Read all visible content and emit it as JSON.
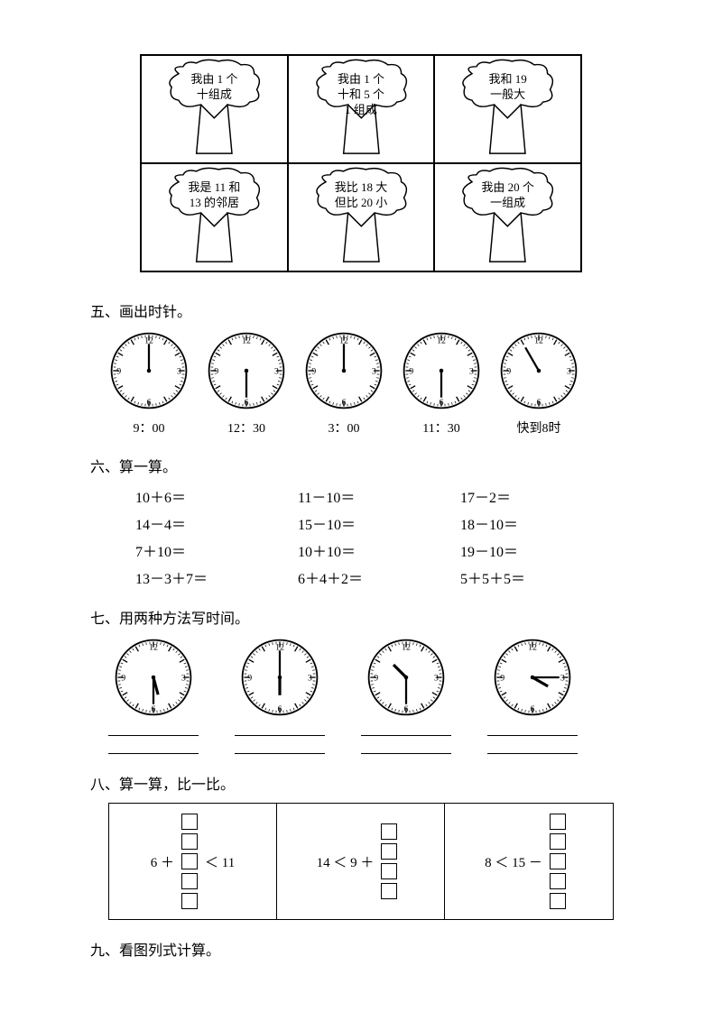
{
  "trees": [
    "我由 1 个\n十组成",
    "我由 1 个\n十和 5 个\n1 组成",
    "我和 19\n一般大",
    "我是 11 和\n13 的邻居",
    "我比 18 大\n但比 20 小",
    "我由 20 个\n一组成"
  ],
  "sections": {
    "five": "五、画出时针。",
    "six": "六、算一算。",
    "seven": "七、用两种方法写时间。",
    "eight": "八、算一算，比一比。",
    "nine": "九、看图列式计算。"
  },
  "clocks5": [
    {
      "label": "9：00",
      "minute_angle": 0,
      "show_hour": false
    },
    {
      "label": "12：30",
      "minute_angle": 180,
      "show_hour": false
    },
    {
      "label": "3：00",
      "minute_angle": 0,
      "show_hour": false
    },
    {
      "label": "11：30",
      "minute_angle": 180,
      "show_hour": false
    },
    {
      "label": "快到8时",
      "minute_angle": -30,
      "show_hour": false
    }
  ],
  "calc": [
    "10＋6＝",
    "11－10＝",
    "17－2＝",
    "14－4＝",
    "15－10＝",
    "18－10＝",
    "7＋10＝",
    "10＋10＝",
    "19－10＝",
    "13－3＋7＝",
    "6＋4＋2＝",
    "5＋5＋5＝"
  ],
  "clocks7": [
    {
      "hour_angle": 165,
      "minute_angle": 180
    },
    {
      "hour_angle": 180,
      "minute_angle": 0
    },
    {
      "hour_angle": 315,
      "minute_angle": 180
    },
    {
      "hour_angle": 120,
      "minute_angle": 90
    }
  ],
  "compare": [
    {
      "expr_before": "6 ＋",
      "boxes": 5,
      "expr_after": "＜ 11"
    },
    {
      "expr_before": "14 ＜ 9 ＋",
      "boxes": 4,
      "expr_after": ""
    },
    {
      "expr_before": "8 ＜ 15 －",
      "boxes": 5,
      "expr_after": ""
    }
  ],
  "clock_numbers": {
    "12": "12",
    "3": "3",
    "6": "6",
    "9": "9"
  },
  "colors": {
    "stroke": "#000000",
    "bg": "#ffffff"
  }
}
